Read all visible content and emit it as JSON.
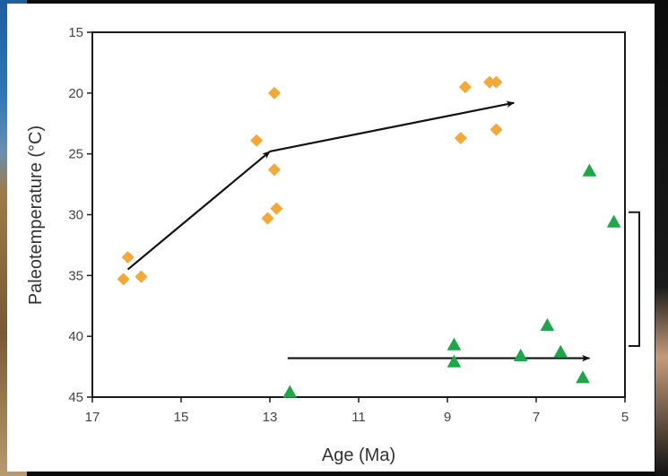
{
  "chart_data": {
    "type": "scatter",
    "title": "",
    "xlabel": "Age (Ma)",
    "ylabel": "Paleotemperature (°C)",
    "xlim": [
      17,
      5
    ],
    "ylim": [
      45,
      15
    ],
    "y_axis_inverted": true,
    "x_axis_reversed": true,
    "xticks": [
      "17",
      "15",
      "13",
      "11",
      "9",
      "7",
      "5"
    ],
    "xtick_values": [
      17,
      15,
      13,
      11,
      9,
      7,
      5
    ],
    "yticks": [
      "15",
      "20",
      "25",
      "30",
      "35",
      "40",
      "45"
    ],
    "ytick_values": [
      15,
      20,
      25,
      30,
      35,
      40,
      45
    ],
    "grid": false,
    "series": [
      {
        "marker": "diamond",
        "color": "#f3a93a",
        "points": [
          {
            "x": 16.3,
            "y": 35.3
          },
          {
            "x": 16.2,
            "y": 33.5
          },
          {
            "x": 15.9,
            "y": 35.1
          },
          {
            "x": 13.3,
            "y": 23.9
          },
          {
            "x": 12.9,
            "y": 20.0
          },
          {
            "x": 12.9,
            "y": 26.3
          },
          {
            "x": 12.85,
            "y": 29.5
          },
          {
            "x": 13.05,
            "y": 30.3
          },
          {
            "x": 8.6,
            "y": 19.5
          },
          {
            "x": 8.7,
            "y": 23.7
          },
          {
            "x": 8.05,
            "y": 19.1
          },
          {
            "x": 7.9,
            "y": 19.1
          },
          {
            "x": 7.9,
            "y": 23.0
          }
        ]
      },
      {
        "marker": "triangle",
        "color": "#1fa64a",
        "points": [
          {
            "x": 12.55,
            "y": 44.6
          },
          {
            "x": 8.85,
            "y": 40.7
          },
          {
            "x": 8.85,
            "y": 42.1
          },
          {
            "x": 7.35,
            "y": 41.6
          },
          {
            "x": 6.75,
            "y": 39.1
          },
          {
            "x": 6.45,
            "y": 41.3
          },
          {
            "x": 5.95,
            "y": 43.4
          },
          {
            "x": 5.8,
            "y": 26.4
          },
          {
            "x": 5.25,
            "y": 30.6
          }
        ]
      }
    ],
    "annotations": {
      "arrows": [
        {
          "from": {
            "x": 16.2,
            "y": 34.5
          },
          "to": {
            "x": 13.0,
            "y": 24.8
          }
        },
        {
          "from": {
            "x": 13.0,
            "y": 24.8
          },
          "to": {
            "x": 7.5,
            "y": 20.8
          }
        },
        {
          "from": {
            "x": 12.6,
            "y": 41.8
          },
          "to": {
            "x": 5.8,
            "y": 41.8
          }
        }
      ],
      "bracket": {
        "y_top": 29.8,
        "y_bottom": 40.8
      }
    }
  }
}
